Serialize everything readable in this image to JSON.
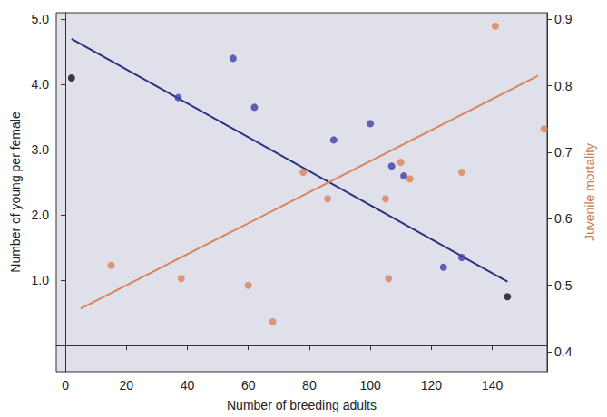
{
  "chart_data": {
    "type": "scatter",
    "xlabel": "Number of breeding adults",
    "ylabel": "Number of young per female",
    "y2label": "Juvenile mortality",
    "xlim": [
      -3,
      158
    ],
    "xticks": [
      0,
      20,
      40,
      60,
      80,
      100,
      120,
      140
    ],
    "ylim": [
      -0.4,
      5.1
    ],
    "yticks": [
      {
        "value": 1,
        "label": "1.0"
      },
      {
        "value": 2,
        "label": "2.0"
      },
      {
        "value": 3,
        "label": "3.0"
      },
      {
        "value": 4,
        "label": "4.0"
      },
      {
        "value": 5,
        "label": "5.0"
      }
    ],
    "y2lim": [
      0.37,
      0.91
    ],
    "y2ticks": [
      0.4,
      0.5,
      0.6,
      0.7,
      0.8,
      0.9
    ],
    "grid": false,
    "series": [
      {
        "type": "line",
        "color": "#2b2f86",
        "x": [
          2,
          145
        ],
        "values": [
          4.7,
          0.98
        ]
      },
      {
        "type": "line",
        "color": "#d9825b",
        "axis": "y2",
        "x": [
          5,
          155
        ],
        "values": [
          0.465,
          0.815
        ]
      },
      {
        "type": "scatter",
        "color": "#3b40a8",
        "x": [
          37,
          55,
          62,
          88,
          100,
          107,
          111,
          124,
          130
        ],
        "values": [
          3.8,
          4.4,
          3.65,
          3.15,
          3.4,
          2.75,
          2.6,
          1.2,
          1.35
        ]
      },
      {
        "type": "scatter",
        "color": "#111111",
        "x": [
          2,
          145
        ],
        "values": [
          4.1,
          0.75
        ]
      },
      {
        "type": "scatter",
        "color": "#d9825b",
        "axis": "y2",
        "x": [
          15,
          38,
          60,
          68,
          78,
          86,
          105,
          106,
          110,
          113,
          130,
          141,
          157
        ],
        "values": [
          0.53,
          0.51,
          0.5,
          0.445,
          0.67,
          0.63,
          0.63,
          0.51,
          0.685,
          0.66,
          0.67,
          0.89,
          0.735
        ]
      }
    ]
  }
}
